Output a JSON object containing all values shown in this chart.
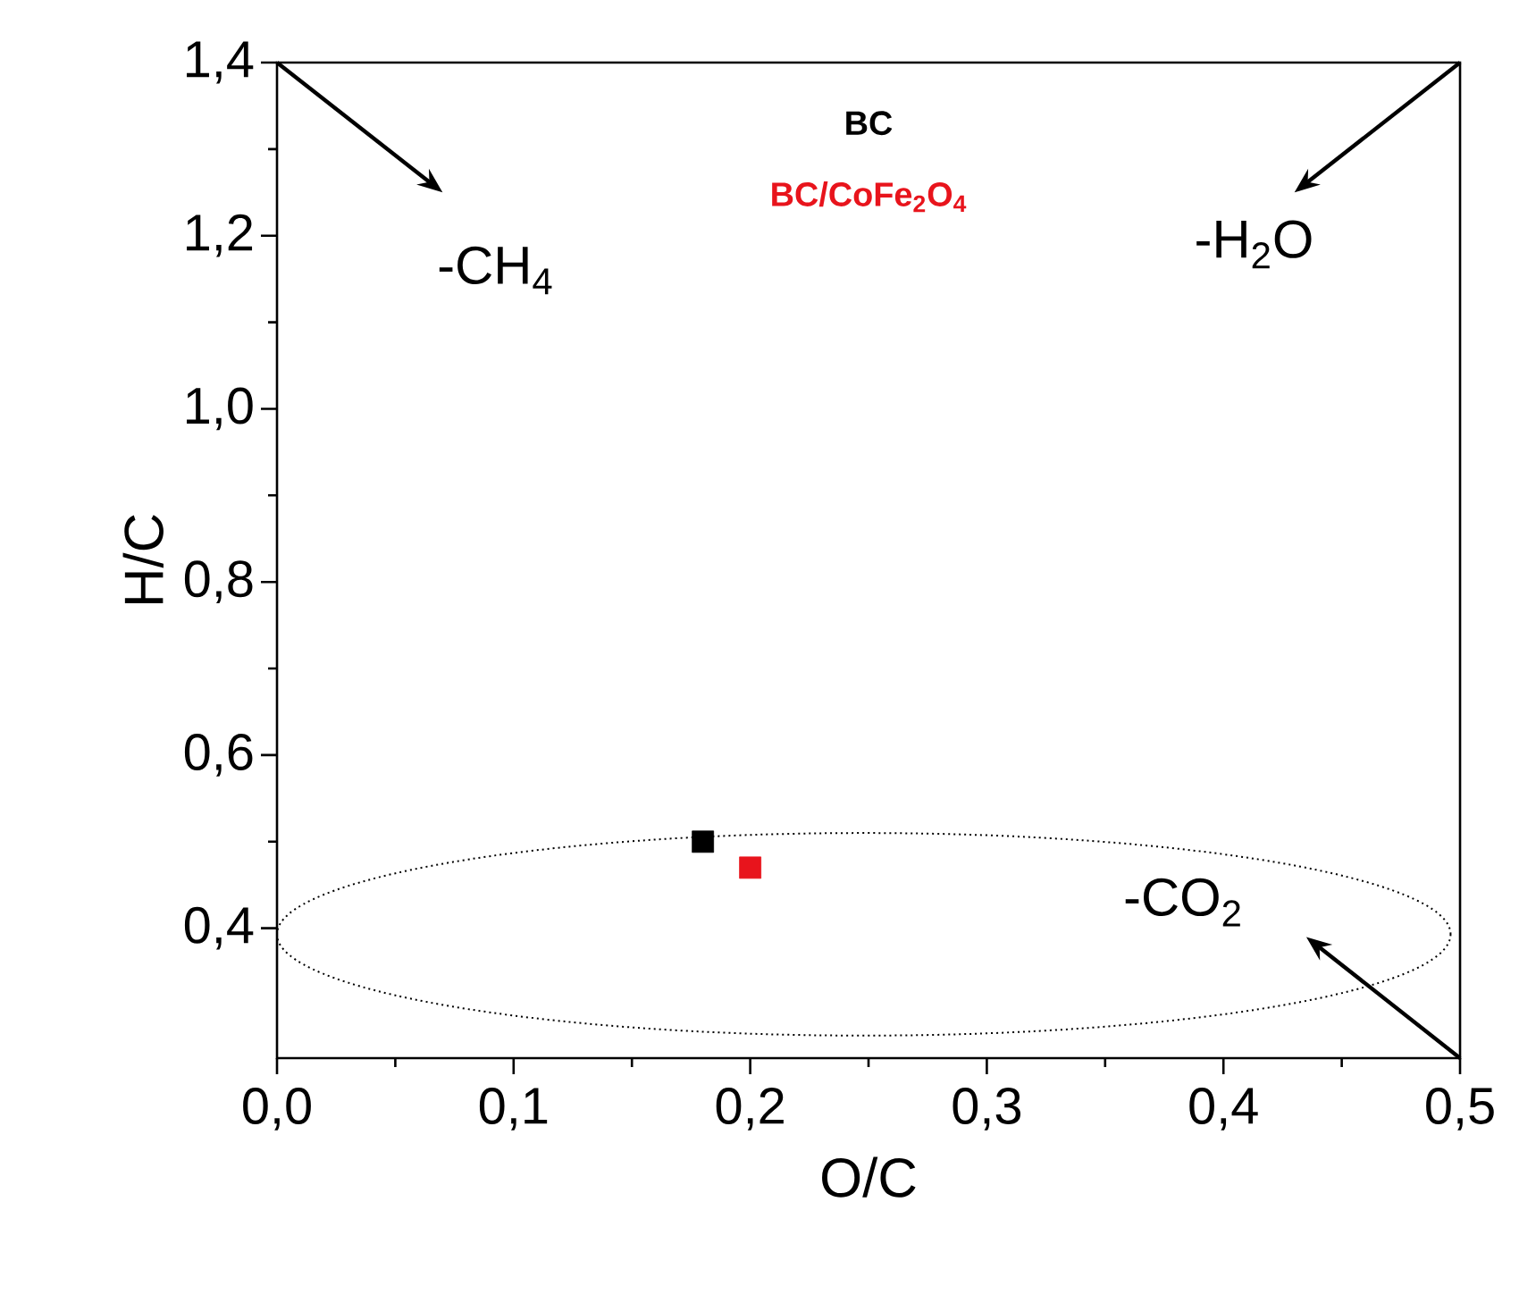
{
  "chart_data": {
    "type": "scatter",
    "xlabel": "O/C",
    "ylabel": "H/C",
    "xlim": [
      0,
      0.5
    ],
    "ylim": [
      0.25,
      1.4
    ],
    "xticks": [
      {
        "value": 0,
        "label": "0,0"
      },
      {
        "value": 0.1,
        "label": "0,1"
      },
      {
        "value": 0.2,
        "label": "0,2"
      },
      {
        "value": 0.3,
        "label": "0,3"
      },
      {
        "value": 0.4,
        "label": "0,4"
      },
      {
        "value": 0.5,
        "label": "0,5"
      }
    ],
    "yticks": [
      {
        "value": 0.4,
        "label": "0,4"
      },
      {
        "value": 0.6,
        "label": "0,6"
      },
      {
        "value": 0.8,
        "label": "0,8"
      },
      {
        "value": 1.0,
        "label": "1,0"
      },
      {
        "value": 1.2,
        "label": "1,2"
      },
      {
        "value": 1.4,
        "label": "1,4"
      }
    ],
    "marker": "square",
    "legend": "top",
    "series": [
      {
        "name": "BC",
        "color": "#000000",
        "x": [
          0.18
        ],
        "values": [
          0.5
        ]
      },
      {
        "name": "BC/CoFe$_{2}$O$_{4}$",
        "color": "#e8141c",
        "x": [
          0.2
        ],
        "values": [
          0.47
        ]
      }
    ],
    "annotations": [
      "-CH$_{4}$",
      "-H$_{2}$O",
      "-CO$_{2}$"
    ]
  }
}
